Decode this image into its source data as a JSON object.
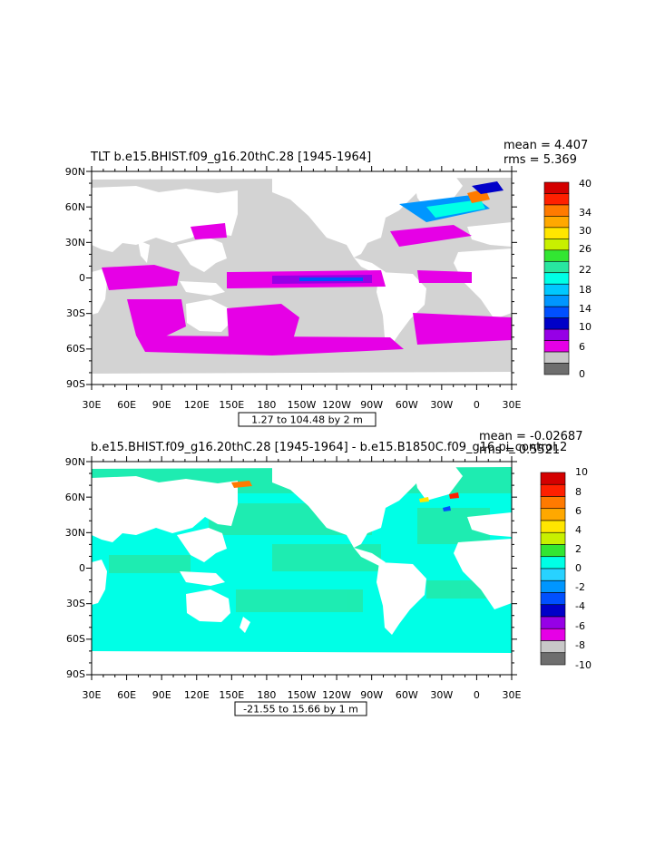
{
  "panels": [
    {
      "title": "TLT b.e15.BHIST.f09_g16.20thC.28 [1945-1964]",
      "stats": {
        "mean": "mean = 4.407",
        "rms": "rms = 5.369"
      },
      "range_label": "1.27 to 104.48 by 2 m",
      "colorbar_labels": [
        "40",
        "34",
        "30",
        "26",
        "22",
        "18",
        "14",
        "10",
        "6",
        "0"
      ],
      "colorbar_colors": [
        "#d40000",
        "#ff2000",
        "#ff7a00",
        "#ffa800",
        "#ffe600",
        "#c8f000",
        "#32e632",
        "#28e6a0",
        "#00ffe6",
        "#00c8ff",
        "#0096ff",
        "#0050ff",
        "#0000c8",
        "#9600e6",
        "#e600e6",
        "#c8c8c8",
        "#6e6e6e"
      ]
    },
    {
      "title": "b.e15.BHIST.f09_g16.20thC.28 [1945-1964] - b.e15.B1850C.f09_g16.pi_control.2",
      "stats": {
        "mean": "mean = -0.02687",
        "rms": "rms = 0.5521"
      },
      "range_label": "-21.55 to 15.66 by 1 m",
      "colorbar_labels": [
        "10",
        "8",
        "6",
        "4",
        "2",
        "0",
        "-2",
        "-4",
        "-6",
        "-8",
        "-10"
      ],
      "colorbar_colors": [
        "#d40000",
        "#ff2000",
        "#ff7a00",
        "#ffa800",
        "#ffe600",
        "#c8f000",
        "#32e632",
        "#00ffe6",
        "#28d2ff",
        "#0096ff",
        "#0050ff",
        "#0000c8",
        "#9600e6",
        "#e600e6",
        "#c8c8c8",
        "#6e6e6e"
      ]
    }
  ],
  "lat_labels": [
    "90N",
    "60N",
    "30N",
    "0",
    "30S",
    "60S",
    "90S"
  ],
  "lon_labels": [
    "30E",
    "60E",
    "90E",
    "120E",
    "150E",
    "180",
    "150W",
    "120W",
    "90W",
    "60W",
    "30W",
    "0",
    "30E"
  ],
  "colors": {
    "land": "#ffffff",
    "ocean_top": "#d3d3d3",
    "ocean_bottom": "#00ffe6",
    "frame": "#000000"
  }
}
